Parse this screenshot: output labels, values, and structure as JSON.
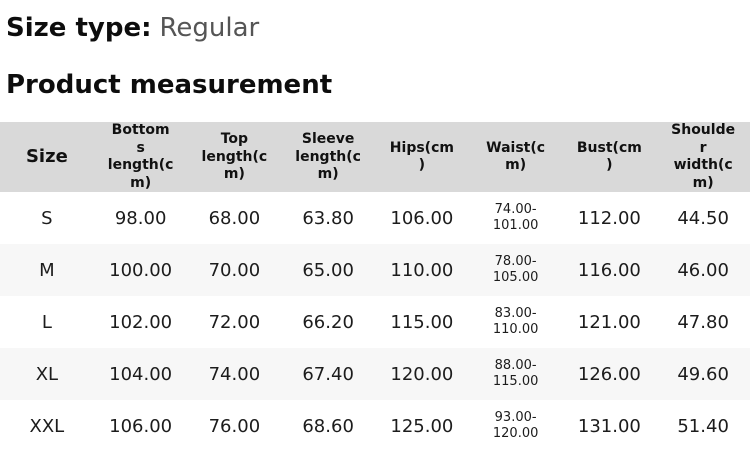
{
  "page": {
    "size_type_label": "Size type:",
    "size_type_value": "Regular",
    "section_title": "Product measurement"
  },
  "table": {
    "columns": [
      "Size",
      "Bottoms length(cm)",
      "Top length(cm)",
      "Sleeve length(cm)",
      "Hips(cm)",
      "Waist(cm)",
      "Bust(cm)",
      "Shoulder width(cm)"
    ],
    "rows": [
      {
        "cells": [
          "S",
          "98.00",
          "68.00",
          "63.80",
          "106.00",
          "74.00-101.00",
          "112.00",
          "44.50"
        ]
      },
      {
        "cells": [
          "M",
          "100.00",
          "70.00",
          "65.00",
          "110.00",
          "78.00-105.00",
          "116.00",
          "46.00"
        ]
      },
      {
        "cells": [
          "L",
          "102.00",
          "72.00",
          "66.20",
          "115.00",
          "83.00-110.00",
          "121.00",
          "47.80"
        ]
      },
      {
        "cells": [
          "XL",
          "104.00",
          "74.00",
          "67.40",
          "120.00",
          "88.00-115.00",
          "126.00",
          "49.60"
        ]
      },
      {
        "cells": [
          "XXL",
          "106.00",
          "76.00",
          "68.60",
          "125.00",
          "93.00-120.00",
          "131.00",
          "51.40"
        ]
      }
    ]
  },
  "colors": {
    "header_bg": "#d9d9d9",
    "alt_row_bg": "#f7f7f7",
    "heading_text": "#0d0d0d",
    "muted_text": "#555555",
    "body_text": "#1c1c1c"
  }
}
